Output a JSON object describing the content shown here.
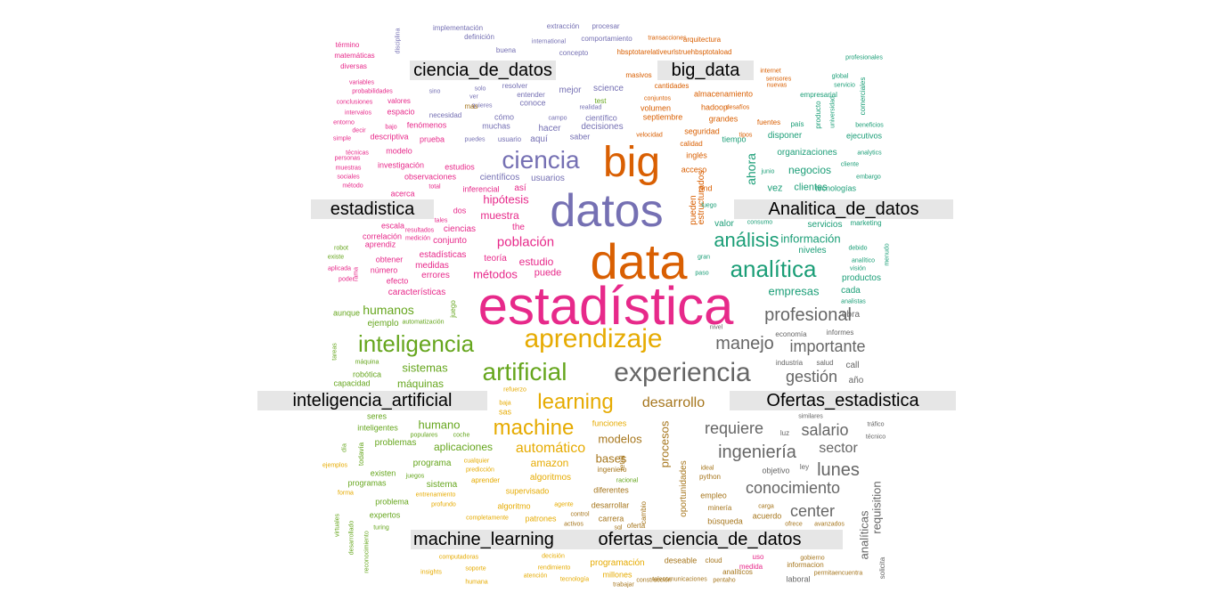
{
  "colors": {
    "green": "#1b9e77",
    "orange": "#d95f02",
    "purple": "#7570b3",
    "pink": "#e7298a",
    "lime": "#66a61e",
    "gold": "#e6ab02",
    "brown": "#a6761d",
    "gray": "#666666"
  },
  "cluster_labels": [
    "ciencia_de_datos",
    "big_data",
    "estadistica",
    "Analitica_de_datos",
    "inteligencia_artificial",
    "Ofertas_estadistica",
    "machine_learning",
    "ofertas_ciencia_de_datos"
  ],
  "words": [
    {
      "text": "estadística",
      "color": "pink"
    },
    {
      "text": "data",
      "color": "orange"
    },
    {
      "text": "datos",
      "color": "purple"
    },
    {
      "text": "big",
      "color": "orange"
    },
    {
      "text": "aprendizaje",
      "color": "gold"
    },
    {
      "text": "experiencia",
      "color": "gray"
    },
    {
      "text": "ciencia",
      "color": "purple"
    },
    {
      "text": "analítica",
      "color": "green"
    },
    {
      "text": "inteligencia",
      "color": "lime"
    },
    {
      "text": "artificial",
      "color": "lime"
    },
    {
      "text": "machine",
      "color": "gold"
    },
    {
      "text": "learning",
      "color": "gold"
    },
    {
      "text": "análisis",
      "color": "green"
    },
    {
      "text": "profesional",
      "color": "gray"
    },
    {
      "text": "manejo",
      "color": "gray"
    },
    {
      "text": "importante",
      "color": "gray"
    },
    {
      "text": "ingeniería",
      "color": "gray"
    },
    {
      "text": "requiere",
      "color": "gray"
    },
    {
      "text": "salario",
      "color": "gray"
    },
    {
      "text": "desarrollo",
      "color": "brown"
    },
    {
      "text": "gestión",
      "color": "gray"
    },
    {
      "text": "conocimiento",
      "color": "gray"
    },
    {
      "text": "center",
      "color": "gray"
    },
    {
      "text": "lunes",
      "color": "gray"
    },
    {
      "text": "sector",
      "color": "gray"
    },
    {
      "text": "automático",
      "color": "gold"
    },
    {
      "text": "población",
      "color": "pink"
    },
    {
      "text": "humanos",
      "color": "lime"
    },
    {
      "text": "información",
      "color": "green"
    },
    {
      "text": "ahora",
      "color": "green"
    },
    {
      "text": "empresas",
      "color": "green"
    },
    {
      "text": "hipótesis",
      "color": "pink"
    },
    {
      "text": "métodos",
      "color": "pink"
    },
    {
      "text": "estudio",
      "color": "pink"
    },
    {
      "text": "muestra",
      "color": "pink"
    },
    {
      "text": "sistemas",
      "color": "lime"
    },
    {
      "text": "máquinas",
      "color": "lime"
    },
    {
      "text": "humano",
      "color": "lime"
    },
    {
      "text": "aplicaciones",
      "color": "lime"
    },
    {
      "text": "amazon",
      "color": "gold"
    },
    {
      "text": "bases",
      "color": "brown"
    },
    {
      "text": "modelos",
      "color": "brown"
    },
    {
      "text": "procesos",
      "color": "brown"
    },
    {
      "text": "requisition",
      "color": "gray"
    },
    {
      "text": "analíticas",
      "color": "gray"
    },
    {
      "text": "negocios",
      "color": "green"
    },
    {
      "text": "clientes",
      "color": "green"
    },
    {
      "text": "vez",
      "color": "green"
    },
    {
      "text": "servicios",
      "color": "green"
    },
    {
      "text": "niveles",
      "color": "green"
    },
    {
      "text": "productos",
      "color": "green"
    },
    {
      "text": "cada",
      "color": "green"
    },
    {
      "text": "usuarios",
      "color": "purple"
    },
    {
      "text": "científicos",
      "color": "purple"
    },
    {
      "text": "aquí",
      "color": "purple"
    },
    {
      "text": "mejor",
      "color": "purple"
    },
    {
      "text": "science",
      "color": "purple"
    },
    {
      "text": "decisiones",
      "color": "purple"
    },
    {
      "text": "hacer",
      "color": "purple"
    },
    {
      "text": "científico",
      "color": "purple"
    },
    {
      "text": "saber",
      "color": "purple"
    },
    {
      "text": "muchas",
      "color": "purple"
    },
    {
      "text": "cómo",
      "color": "purple"
    },
    {
      "text": "conoce",
      "color": "purple"
    },
    {
      "text": "puede",
      "color": "pink"
    },
    {
      "text": "teoría",
      "color": "pink"
    },
    {
      "text": "conjunto",
      "color": "pink"
    },
    {
      "text": "ciencias",
      "color": "pink"
    },
    {
      "text": "estadísticas",
      "color": "pink"
    },
    {
      "text": "medidas",
      "color": "pink"
    },
    {
      "text": "errores",
      "color": "pink"
    },
    {
      "text": "características",
      "color": "pink"
    },
    {
      "text": "estudios",
      "color": "pink"
    },
    {
      "text": "observaciones",
      "color": "pink"
    },
    {
      "text": "investigación",
      "color": "pink"
    },
    {
      "text": "descriptiva",
      "color": "pink"
    },
    {
      "text": "espacio",
      "color": "pink"
    },
    {
      "text": "fenómenos",
      "color": "pink"
    },
    {
      "text": "prueba",
      "color": "pink"
    },
    {
      "text": "modelo",
      "color": "pink"
    },
    {
      "text": "dos",
      "color": "pink"
    },
    {
      "text": "the",
      "color": "pink"
    },
    {
      "text": "así",
      "color": "pink"
    },
    {
      "text": "acerca",
      "color": "pink"
    },
    {
      "text": "inferencial",
      "color": "pink"
    },
    {
      "text": "escala",
      "color": "pink"
    },
    {
      "text": "correlación",
      "color": "pink"
    },
    {
      "text": "aprendiz",
      "color": "pink"
    },
    {
      "text": "obtener",
      "color": "pink"
    },
    {
      "text": "número",
      "color": "pink"
    },
    {
      "text": "efecto",
      "color": "pink"
    },
    {
      "text": "ejemplo",
      "color": "lime"
    },
    {
      "text": "aunque",
      "color": "lime"
    },
    {
      "text": "robótica",
      "color": "lime"
    },
    {
      "text": "capacidad",
      "color": "lime"
    },
    {
      "text": "problemas",
      "color": "lime"
    },
    {
      "text": "inteligentes",
      "color": "lime"
    },
    {
      "text": "seres",
      "color": "lime"
    },
    {
      "text": "programa",
      "color": "lime"
    },
    {
      "text": "existen",
      "color": "lime"
    },
    {
      "text": "programas",
      "color": "lime"
    },
    {
      "text": "sistema",
      "color": "lime"
    },
    {
      "text": "problema",
      "color": "lime"
    },
    {
      "text": "expertos",
      "color": "lime"
    },
    {
      "text": "algoritmos",
      "color": "gold"
    },
    {
      "text": "supervisado",
      "color": "gold"
    },
    {
      "text": "algoritmo",
      "color": "gold"
    },
    {
      "text": "patrones",
      "color": "gold"
    },
    {
      "text": "funciones",
      "color": "gold"
    },
    {
      "text": "sas",
      "color": "gold"
    },
    {
      "text": "aprender",
      "color": "gold"
    },
    {
      "text": "programación",
      "color": "gold"
    },
    {
      "text": "millones",
      "color": "gold"
    },
    {
      "text": "desarrollar",
      "color": "brown"
    },
    {
      "text": "diferentes",
      "color": "brown"
    },
    {
      "text": "carrera",
      "color": "brown"
    },
    {
      "text": "oferta",
      "color": "brown"
    },
    {
      "text": "ingeniero",
      "color": "brown"
    },
    {
      "text": "oportunidades",
      "color": "brown"
    },
    {
      "text": "estructurados",
      "color": "orange"
    },
    {
      "text": "pueden",
      "color": "orange"
    },
    {
      "text": "seguridad",
      "color": "orange"
    },
    {
      "text": "inglés",
      "color": "orange"
    },
    {
      "text": "acceso",
      "color": "orange"
    },
    {
      "text": "and",
      "color": "orange"
    },
    {
      "text": "septiembre",
      "color": "orange"
    },
    {
      "text": "hadoop",
      "color": "orange"
    },
    {
      "text": "grandes",
      "color": "orange"
    },
    {
      "text": "volumen",
      "color": "orange"
    },
    {
      "text": "almacenamiento",
      "color": "orange"
    },
    {
      "text": "masivos",
      "color": "orange"
    },
    {
      "text": "calidad",
      "color": "orange"
    },
    {
      "text": "disponer",
      "color": "green"
    },
    {
      "text": "organizaciones",
      "color": "green"
    },
    {
      "text": "ejecutivos",
      "color": "green"
    },
    {
      "text": "empresarial",
      "color": "green"
    },
    {
      "text": "tecnologías",
      "color": "green"
    },
    {
      "text": "valor",
      "color": "green"
    },
    {
      "text": "tiempo",
      "color": "green"
    },
    {
      "text": "obra",
      "color": "gray"
    },
    {
      "text": "call",
      "color": "gray"
    },
    {
      "text": "año",
      "color": "gray"
    },
    {
      "text": "empleo",
      "color": "brown"
    },
    {
      "text": "búsqueda",
      "color": "brown"
    },
    {
      "text": "acuerdo",
      "color": "brown"
    },
    {
      "text": "minería",
      "color": "brown"
    },
    {
      "text": "python",
      "color": "brown"
    },
    {
      "text": "deseable",
      "color": "brown"
    },
    {
      "text": "cloud",
      "color": "brown"
    },
    {
      "text": "objetivo",
      "color": "gray"
    },
    {
      "text": "ley",
      "color": "gray"
    },
    {
      "text": "luz",
      "color": "gray"
    },
    {
      "text": "laboral",
      "color": "gray"
    },
    {
      "text": "economía",
      "color": "gray"
    },
    {
      "text": "informes",
      "color": "gray"
    },
    {
      "text": "industria",
      "color": "gray"
    },
    {
      "text": "salud",
      "color": "gray"
    },
    {
      "text": "nivel",
      "color": "gray"
    },
    {
      "text": "solicita",
      "color": "gray"
    },
    {
      "text": "técnico",
      "color": "gray"
    },
    {
      "text": "tráfico",
      "color": "gray"
    },
    {
      "text": "similares",
      "color": "gray"
    },
    {
      "text": "término",
      "color": "pink"
    },
    {
      "text": "matemáticas",
      "color": "pink"
    },
    {
      "text": "diversas",
      "color": "pink"
    },
    {
      "text": "variables",
      "color": "pink"
    },
    {
      "text": "probabilidades",
      "color": "pink"
    },
    {
      "text": "conclusiones",
      "color": "pink"
    },
    {
      "text": "intervalos",
      "color": "pink"
    },
    {
      "text": "entorno",
      "color": "pink"
    },
    {
      "text": "simple",
      "color": "pink"
    },
    {
      "text": "técnicas",
      "color": "pink"
    },
    {
      "text": "personas",
      "color": "pink"
    },
    {
      "text": "muestras",
      "color": "pink"
    },
    {
      "text": "sociales",
      "color": "pink"
    },
    {
      "text": "método",
      "color": "pink"
    },
    {
      "text": "valores",
      "color": "pink"
    },
    {
      "text": "decir",
      "color": "pink"
    },
    {
      "text": "bajo",
      "color": "pink"
    },
    {
      "text": "disciplina",
      "color": "purple"
    },
    {
      "text": "implementación",
      "color": "purple"
    },
    {
      "text": "definición",
      "color": "purple"
    },
    {
      "text": "extracción",
      "color": "purple"
    },
    {
      "text": "procesar",
      "color": "purple"
    },
    {
      "text": "comportamiento",
      "color": "purple"
    },
    {
      "text": "international",
      "color": "purple"
    },
    {
      "text": "concepto",
      "color": "purple"
    },
    {
      "text": "buena",
      "color": "purple"
    },
    {
      "text": "resolver",
      "color": "purple"
    },
    {
      "text": "entender",
      "color": "purple"
    },
    {
      "text": "necesidad",
      "color": "purple"
    },
    {
      "text": "realidad",
      "color": "purple"
    },
    {
      "text": "quieres",
      "color": "purple"
    },
    {
      "text": "campo",
      "color": "purple"
    },
    {
      "text": "usuario",
      "color": "purple"
    },
    {
      "text": "puedes",
      "color": "purple"
    },
    {
      "text": "arquitectura",
      "color": "orange"
    },
    {
      "text": "transacciones",
      "color": "orange"
    },
    {
      "text": "cantidades",
      "color": "orange"
    },
    {
      "text": "conjuntos",
      "color": "orange"
    },
    {
      "text": "desafíos",
      "color": "orange"
    },
    {
      "text": "fuentes",
      "color": "orange"
    },
    {
      "text": "internet",
      "color": "orange"
    },
    {
      "text": "sensores",
      "color": "orange"
    },
    {
      "text": "nuevas",
      "color": "orange"
    },
    {
      "text": "velocidad",
      "color": "orange"
    },
    {
      "text": "tipos",
      "color": "orange"
    },
    {
      "text": "hbsptotarelativeurlstruehbsptotaload",
      "color": "orange"
    },
    {
      "text": "profesionales",
      "color": "green"
    },
    {
      "text": "global",
      "color": "green"
    },
    {
      "text": "servicio",
      "color": "green"
    },
    {
      "text": "beneficios",
      "color": "green"
    },
    {
      "text": "analytics",
      "color": "green"
    },
    {
      "text": "cliente",
      "color": "green"
    },
    {
      "text": "embargo",
      "color": "green"
    },
    {
      "text": "marketing",
      "color": "green"
    },
    {
      "text": "debido",
      "color": "green"
    },
    {
      "text": "analítico",
      "color": "green"
    },
    {
      "text": "visión",
      "color": "green"
    },
    {
      "text": "analistas",
      "color": "green"
    },
    {
      "text": "país",
      "color": "green"
    },
    {
      "text": "producto",
      "color": "green"
    },
    {
      "text": "universidad",
      "color": "green"
    },
    {
      "text": "comerciales",
      "color": "green"
    },
    {
      "text": "junio",
      "color": "green"
    },
    {
      "text": "consumo",
      "color": "green"
    },
    {
      "text": "gran",
      "color": "green"
    },
    {
      "text": "paso",
      "color": "green"
    },
    {
      "text": "luego",
      "color": "green"
    },
    {
      "text": "menudo",
      "color": "green"
    },
    {
      "text": "computadoras",
      "color": "gold"
    },
    {
      "text": "soporte",
      "color": "gold"
    },
    {
      "text": "humana",
      "color": "gold"
    },
    {
      "text": "atención",
      "color": "gold"
    },
    {
      "text": "tecnología",
      "color": "gold"
    },
    {
      "text": "rendimiento",
      "color": "gold"
    },
    {
      "text": "decisión",
      "color": "gold"
    },
    {
      "text": "insights",
      "color": "gold"
    },
    {
      "text": "completamente",
      "color": "gold"
    },
    {
      "text": "entrenamiento",
      "color": "gold"
    },
    {
      "text": "profundo",
      "color": "gold"
    },
    {
      "text": "predicción",
      "color": "gold"
    },
    {
      "text": "cualquier",
      "color": "gold"
    },
    {
      "text": "ejemplos",
      "color": "gold"
    },
    {
      "text": "forma",
      "color": "gold"
    },
    {
      "text": "turing",
      "color": "lime"
    },
    {
      "text": "virtuales",
      "color": "lime"
    },
    {
      "text": "desarrollado",
      "color": "lime"
    },
    {
      "text": "reconocimiento",
      "color": "lime"
    },
    {
      "text": "juegos",
      "color": "lime"
    },
    {
      "text": "populares",
      "color": "lime"
    },
    {
      "text": "coche",
      "color": "lime"
    },
    {
      "text": "todavía",
      "color": "lime"
    },
    {
      "text": "día",
      "color": "lime"
    },
    {
      "text": "máquina",
      "color": "lime"
    },
    {
      "text": "tareas",
      "color": "lime"
    },
    {
      "text": "juego",
      "color": "lime"
    },
    {
      "text": "automatización",
      "color": "lime"
    },
    {
      "text": "robot",
      "color": "lime"
    },
    {
      "text": "existe",
      "color": "lime"
    },
    {
      "text": "aplicada",
      "color": "pink"
    },
    {
      "text": "poder",
      "color": "pink"
    },
    {
      "text": "rama",
      "color": "pink"
    },
    {
      "text": "total",
      "color": "pink"
    },
    {
      "text": "resultados",
      "color": "pink"
    },
    {
      "text": "medición",
      "color": "pink"
    },
    {
      "text": "tales",
      "color": "pink"
    },
    {
      "text": "uso",
      "color": "pink"
    },
    {
      "text": "medida",
      "color": "pink"
    },
    {
      "text": "informacion",
      "color": "brown"
    },
    {
      "text": "gobierno",
      "color": "brown"
    },
    {
      "text": "permitaencuentra",
      "color": "brown"
    },
    {
      "text": "analíticos",
      "color": "brown"
    },
    {
      "text": "pentaho",
      "color": "brown"
    },
    {
      "text": "construcción",
      "color": "brown"
    },
    {
      "text": "telecomunicaciones",
      "color": "brown"
    },
    {
      "text": "trabajar",
      "color": "brown"
    },
    {
      "text": "carga",
      "color": "brown"
    },
    {
      "text": "ofrece",
      "color": "brown"
    },
    {
      "text": "avanzados",
      "color": "brown"
    },
    {
      "text": "ideal",
      "color": "brown"
    },
    {
      "text": "retail",
      "color": "brown"
    },
    {
      "text": "cambio",
      "color": "brown"
    },
    {
      "text": "sql",
      "color": "brown"
    },
    {
      "text": "activos",
      "color": "brown"
    },
    {
      "text": "control",
      "color": "brown"
    },
    {
      "text": "agente",
      "color": "gold"
    },
    {
      "text": "baja",
      "color": "gold"
    },
    {
      "text": "refuerzo",
      "color": "gold"
    },
    {
      "text": "racional",
      "color": "lime"
    },
    {
      "text": "test",
      "color": "lime"
    },
    {
      "text": "mas",
      "color": "brown"
    },
    {
      "text": "solo",
      "color": "purple"
    },
    {
      "text": "ver",
      "color": "purple"
    },
    {
      "text": "sino",
      "color": "purple"
    },
    {
      "text": "analizar",
      "color": "purple"
    },
    {
      "text": "ser",
      "color": "purple"
    }
  ]
}
